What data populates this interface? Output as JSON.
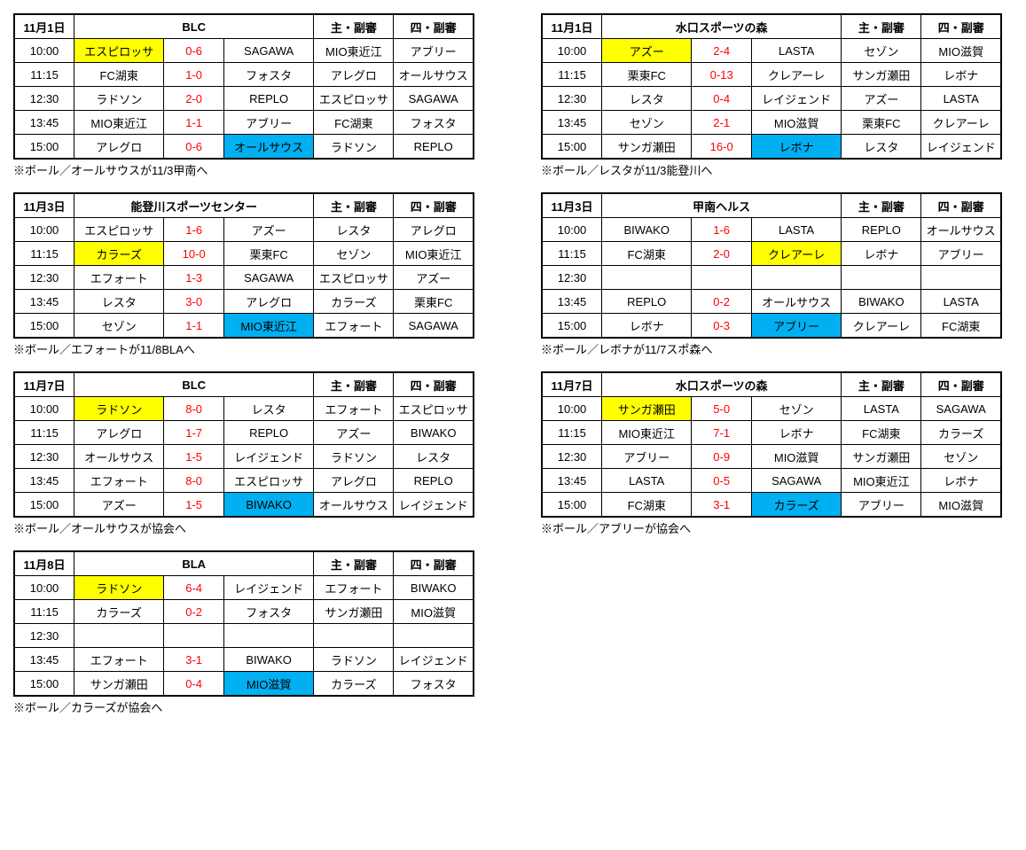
{
  "header_labels": {
    "ref_main": "主・副審",
    "ref_fourth": "四・副審"
  },
  "colors": {
    "highlight_yellow": "#ffff00",
    "highlight_blue": "#00b0f0",
    "score_red": "#ff0000"
  },
  "blocks": [
    {
      "date": "11月1日",
      "venue": "BLC",
      "rows": [
        {
          "time": "10:00",
          "teamA": "エスピロッサ",
          "score": "0-6",
          "teamB": "SAGAWA",
          "ref1": "MIO東近江",
          "ref2": "アブリー",
          "hlA": "Y"
        },
        {
          "time": "11:15",
          "teamA": "FC湖東",
          "score": "1-0",
          "teamB": "フォスタ",
          "ref1": "アレグロ",
          "ref2": "オールサウス"
        },
        {
          "time": "12:30",
          "teamA": "ラドソン",
          "score": "2-0",
          "teamB": "REPLO",
          "ref1": "エスピロッサ",
          "ref2": "SAGAWA"
        },
        {
          "time": "13:45",
          "teamA": "MIO東近江",
          "score": "1-1",
          "teamB": "アブリー",
          "ref1": "FC湖東",
          "ref2": "フォスタ"
        },
        {
          "time": "15:00",
          "teamA": "アレグロ",
          "score": "0-6",
          "teamB": "オールサウス",
          "ref1": "ラドソン",
          "ref2": "REPLO",
          "hlB": "B"
        }
      ],
      "note": "※ボール／オールサウスが11/3甲南へ"
    },
    {
      "date": "11月1日",
      "venue": "水口スポーツの森",
      "rows": [
        {
          "time": "10:00",
          "teamA": "アズー",
          "score": "2-4",
          "teamB": "LASTA",
          "ref1": "セゾン",
          "ref2": "MIO滋賀",
          "hlA": "Y"
        },
        {
          "time": "11:15",
          "teamA": "栗東FC",
          "score": "0-13",
          "teamB": "クレアーレ",
          "ref1": "サンガ瀬田",
          "ref2": "レボナ"
        },
        {
          "time": "12:30",
          "teamA": "レスタ",
          "score": "0-4",
          "teamB": "レイジェンド",
          "ref1": "アズー",
          "ref2": "LASTA"
        },
        {
          "time": "13:45",
          "teamA": "セゾン",
          "score": "2-1",
          "teamB": "MIO滋賀",
          "ref1": "栗東FC",
          "ref2": "クレアーレ"
        },
        {
          "time": "15:00",
          "teamA": "サンガ瀬田",
          "score": "16-0",
          "teamB": "レボナ",
          "ref1": "レスタ",
          "ref2": "レイジェンド",
          "hlB": "B"
        }
      ],
      "note": "※ボール／レスタが11/3能登川へ"
    },
    {
      "date": "11月3日",
      "venue": "能登川スポーツセンター",
      "rows": [
        {
          "time": "10:00",
          "teamA": "エスピロッサ",
          "score": "1-6",
          "teamB": "アズー",
          "ref1": "レスタ",
          "ref2": "アレグロ"
        },
        {
          "time": "11:15",
          "teamA": "カラーズ",
          "score": "10-0",
          "teamB": "栗東FC",
          "ref1": "セゾン",
          "ref2": "MIO東近江",
          "hlA": "Y"
        },
        {
          "time": "12:30",
          "teamA": "エフォート",
          "score": "1-3",
          "teamB": "SAGAWA",
          "ref1": "エスピロッサ",
          "ref2": "アズー"
        },
        {
          "time": "13:45",
          "teamA": "レスタ",
          "score": "3-0",
          "teamB": "アレグロ",
          "ref1": "カラーズ",
          "ref2": "栗東FC"
        },
        {
          "time": "15:00",
          "teamA": "セゾン",
          "score": "1-1",
          "teamB": "MIO東近江",
          "ref1": "エフォート",
          "ref2": "SAGAWA",
          "hlB": "B"
        }
      ],
      "note": "※ボール／エフォートが11/8BLAへ"
    },
    {
      "date": "11月3日",
      "venue": "甲南ヘルス",
      "rows": [
        {
          "time": "10:00",
          "teamA": "BIWAKO",
          "score": "1-6",
          "teamB": "LASTA",
          "ref1": "REPLO",
          "ref2": "オールサウス"
        },
        {
          "time": "11:15",
          "teamA": "FC湖東",
          "score": "2-0",
          "teamB": "クレアーレ",
          "ref1": "レボナ",
          "ref2": "アブリー",
          "hlB": "Y"
        },
        {
          "time": "12:30",
          "teamA": "",
          "score": "",
          "teamB": "",
          "ref1": "",
          "ref2": ""
        },
        {
          "time": "13:45",
          "teamA": "REPLO",
          "score": "0-2",
          "teamB": "オールサウス",
          "ref1": "BIWAKO",
          "ref2": "LASTA"
        },
        {
          "time": "15:00",
          "teamA": "レボナ",
          "score": "0-3",
          "teamB": "アブリー",
          "ref1": "クレアーレ",
          "ref2": "FC湖東",
          "hlB": "B"
        }
      ],
      "note": "※ボール／レボナが11/7スポ森へ"
    },
    {
      "date": "11月7日",
      "venue": "BLC",
      "rows": [
        {
          "time": "10:00",
          "teamA": "ラドソン",
          "score": "8-0",
          "teamB": "レスタ",
          "ref1": "エフォート",
          "ref2": "エスピロッサ",
          "hlA": "Y"
        },
        {
          "time": "11:15",
          "teamA": "アレグロ",
          "score": "1-7",
          "teamB": "REPLO",
          "ref1": "アズー",
          "ref2": "BIWAKO"
        },
        {
          "time": "12:30",
          "teamA": "オールサウス",
          "score": "1-5",
          "teamB": "レイジェンド",
          "ref1": "ラドソン",
          "ref2": "レスタ"
        },
        {
          "time": "13:45",
          "teamA": "エフォート",
          "score": "8-0",
          "teamB": "エスピロッサ",
          "ref1": "アレグロ",
          "ref2": "REPLO"
        },
        {
          "time": "15:00",
          "teamA": "アズー",
          "score": "1-5",
          "teamB": "BIWAKO",
          "ref1": "オールサウス",
          "ref2": "レイジェンド",
          "hlB": "B"
        }
      ],
      "note": "※ボール／オールサウスが協会へ"
    },
    {
      "date": "11月7日",
      "venue": "水口スポーツの森",
      "rows": [
        {
          "time": "10:00",
          "teamA": "サンガ瀬田",
          "score": "5-0",
          "teamB": "セゾン",
          "ref1": "LASTA",
          "ref2": "SAGAWA",
          "hlA": "Y"
        },
        {
          "time": "11:15",
          "teamA": "MIO東近江",
          "score": "7-1",
          "teamB": "レボナ",
          "ref1": "FC湖東",
          "ref2": "カラーズ"
        },
        {
          "time": "12:30",
          "teamA": "アブリー",
          "score": "0-9",
          "teamB": "MIO滋賀",
          "ref1": "サンガ瀬田",
          "ref2": "セゾン"
        },
        {
          "time": "13:45",
          "teamA": "LASTA",
          "score": "0-5",
          "teamB": "SAGAWA",
          "ref1": "MIO東近江",
          "ref2": "レボナ"
        },
        {
          "time": "15:00",
          "teamA": "FC湖東",
          "score": "3-1",
          "teamB": "カラーズ",
          "ref1": "アブリー",
          "ref2": "MIO滋賀",
          "hlB": "B"
        }
      ],
      "note": "※ボール／アブリーが協会へ"
    },
    {
      "date": "11月8日",
      "venue": "BLA",
      "rows": [
        {
          "time": "10:00",
          "teamA": "ラドソン",
          "score": "6-4",
          "teamB": "レイジェンド",
          "ref1": "エフォート",
          "ref2": "BIWAKO",
          "hlA": "Y"
        },
        {
          "time": "11:15",
          "teamA": "カラーズ",
          "score": "0-2",
          "teamB": "フォスタ",
          "ref1": "サンガ瀬田",
          "ref2": "MIO滋賀"
        },
        {
          "time": "12:30",
          "teamA": "",
          "score": "",
          "teamB": "",
          "ref1": "",
          "ref2": ""
        },
        {
          "time": "13:45",
          "teamA": "エフォート",
          "score": "3-1",
          "teamB": "BIWAKO",
          "ref1": "ラドソン",
          "ref2": "レイジェンド"
        },
        {
          "time": "15:00",
          "teamA": "サンガ瀬田",
          "score": "0-4",
          "teamB": "MIO滋賀",
          "ref1": "カラーズ",
          "ref2": "フォスタ",
          "hlB": "B"
        }
      ],
      "note": "※ボール／カラーズが協会へ"
    }
  ]
}
